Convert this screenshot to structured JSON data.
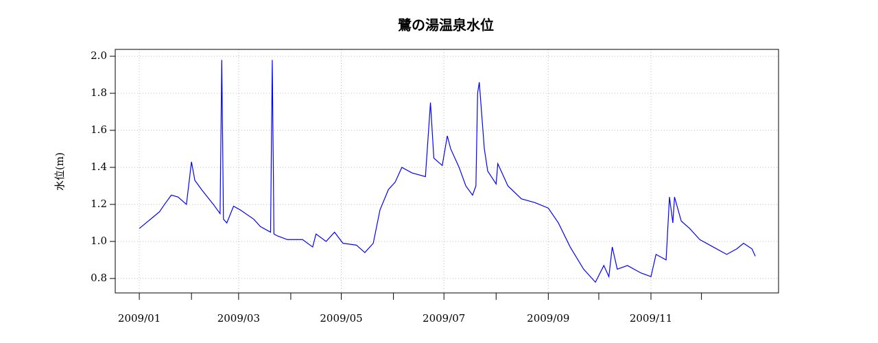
{
  "chart_data": {
    "type": "line",
    "title": "鷺の湯温泉水位",
    "y_label": "水位(m)",
    "x": [
      0,
      4,
      8,
      12,
      15,
      19,
      23,
      28,
      31,
      33,
      37,
      44,
      48,
      49,
      50,
      52,
      56,
      60,
      68,
      72,
      78,
      79,
      80,
      82,
      88,
      97,
      103,
      105,
      111,
      116,
      121,
      129,
      134,
      139,
      143,
      148,
      152,
      156,
      162,
      170,
      173,
      175,
      180,
      183,
      185,
      190,
      194,
      198,
      200,
      201,
      202,
      205,
      207,
      212,
      213,
      219,
      227,
      235,
      243,
      249,
      256,
      264,
      271,
      276,
      279,
      281,
      284,
      290,
      298,
      304,
      307,
      313,
      315,
      317,
      318,
      322,
      327,
      333,
      341,
      349,
      355,
      359,
      364,
      366
    ],
    "series": [
      {
        "name": "水位",
        "color": "#0000ff",
        "values": [
          1.07,
          1.1,
          1.13,
          1.16,
          1.2,
          1.25,
          1.24,
          1.2,
          1.43,
          1.33,
          1.28,
          1.2,
          1.15,
          1.98,
          1.12,
          1.1,
          1.19,
          1.17,
          1.12,
          1.08,
          1.05,
          1.98,
          1.04,
          1.03,
          1.01,
          1.01,
          0.97,
          1.04,
          1.0,
          1.05,
          0.99,
          0.98,
          0.94,
          0.99,
          1.17,
          1.28,
          1.32,
          1.4,
          1.37,
          1.35,
          1.75,
          1.45,
          1.41,
          1.57,
          1.5,
          1.4,
          1.3,
          1.25,
          1.3,
          1.8,
          1.86,
          1.5,
          1.38,
          1.31,
          1.42,
          1.3,
          1.23,
          1.21,
          1.18,
          1.1,
          0.97,
          0.85,
          0.78,
          0.87,
          0.81,
          0.97,
          0.85,
          0.87,
          0.83,
          0.81,
          0.93,
          0.9,
          1.24,
          1.1,
          1.24,
          1.11,
          1.07,
          1.01,
          0.97,
          0.93,
          0.96,
          0.99,
          0.96,
          0.92
        ]
      }
    ],
    "xlim": [
      -14.3,
      379.8
    ],
    "xticks": [
      {
        "value": 0,
        "label": "2009/01"
      },
      {
        "value": 59,
        "label": "2009/03"
      },
      {
        "value": 120,
        "label": "2009/05"
      },
      {
        "value": 181,
        "label": "2009/07"
      },
      {
        "value": 243,
        "label": "2009/09"
      },
      {
        "value": 304,
        "label": "2009/11"
      }
    ],
    "xminorticks": [
      31,
      90,
      151,
      212,
      273,
      334
    ],
    "ylim": [
      0.722,
      2.037
    ],
    "yticks": [
      0.8,
      {
        "value": 1,
        "label": "1.0"
      },
      1.2,
      1.4,
      1.6,
      1.8,
      {
        "value": 2,
        "label": "2.0"
      }
    ],
    "grid": true
  }
}
